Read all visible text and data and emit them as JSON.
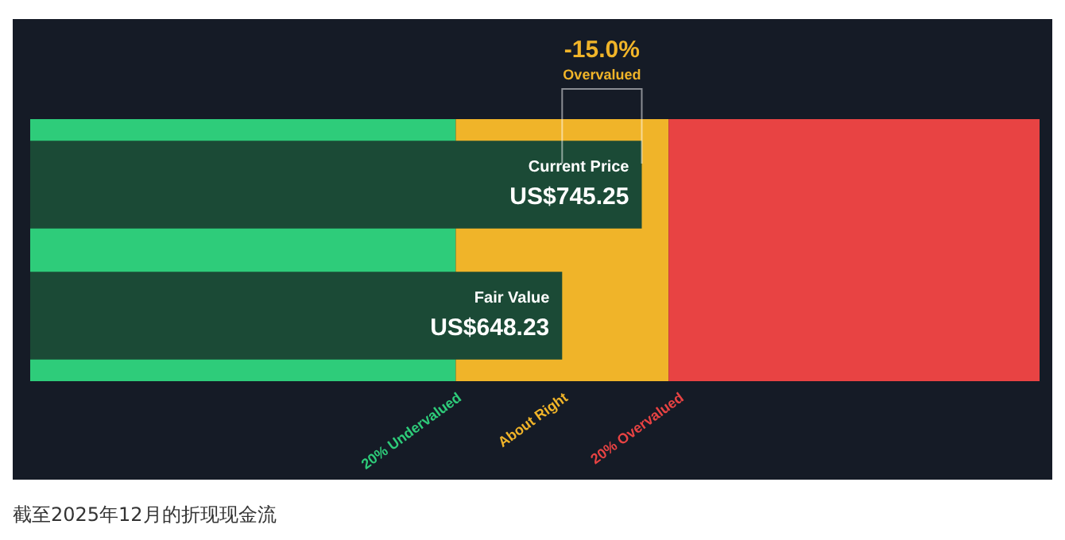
{
  "chart_data": {
    "type": "bar",
    "orientation": "horizontal",
    "title": "-15.0%",
    "subtitle": "Overvalued",
    "categories": [
      "Current Price",
      "Fair Value"
    ],
    "series": [
      {
        "color": "#1b4a36",
        "values": [
          745.25,
          648.23
        ],
        "value_labels": [
          "US$745.25",
          "US$648.23"
        ]
      }
    ],
    "xlim": [
      0,
      1230
    ],
    "tick_labels": false,
    "legend": false,
    "bands": [
      {
        "axis": "x",
        "from": 0,
        "to": 518.58,
        "label": "20% Undervalued",
        "color": "#2ecc7a"
      },
      {
        "axis": "x",
        "from": 518.58,
        "to": 777.88,
        "label": "About Right",
        "color": "#f0b429"
      },
      {
        "axis": "x",
        "from": 777.88,
        "to": 1230,
        "label": "20% Overvalued",
        "color": "#e84343"
      }
    ],
    "annotations": [
      "截至2025年12月的折现现金流"
    ]
  }
}
